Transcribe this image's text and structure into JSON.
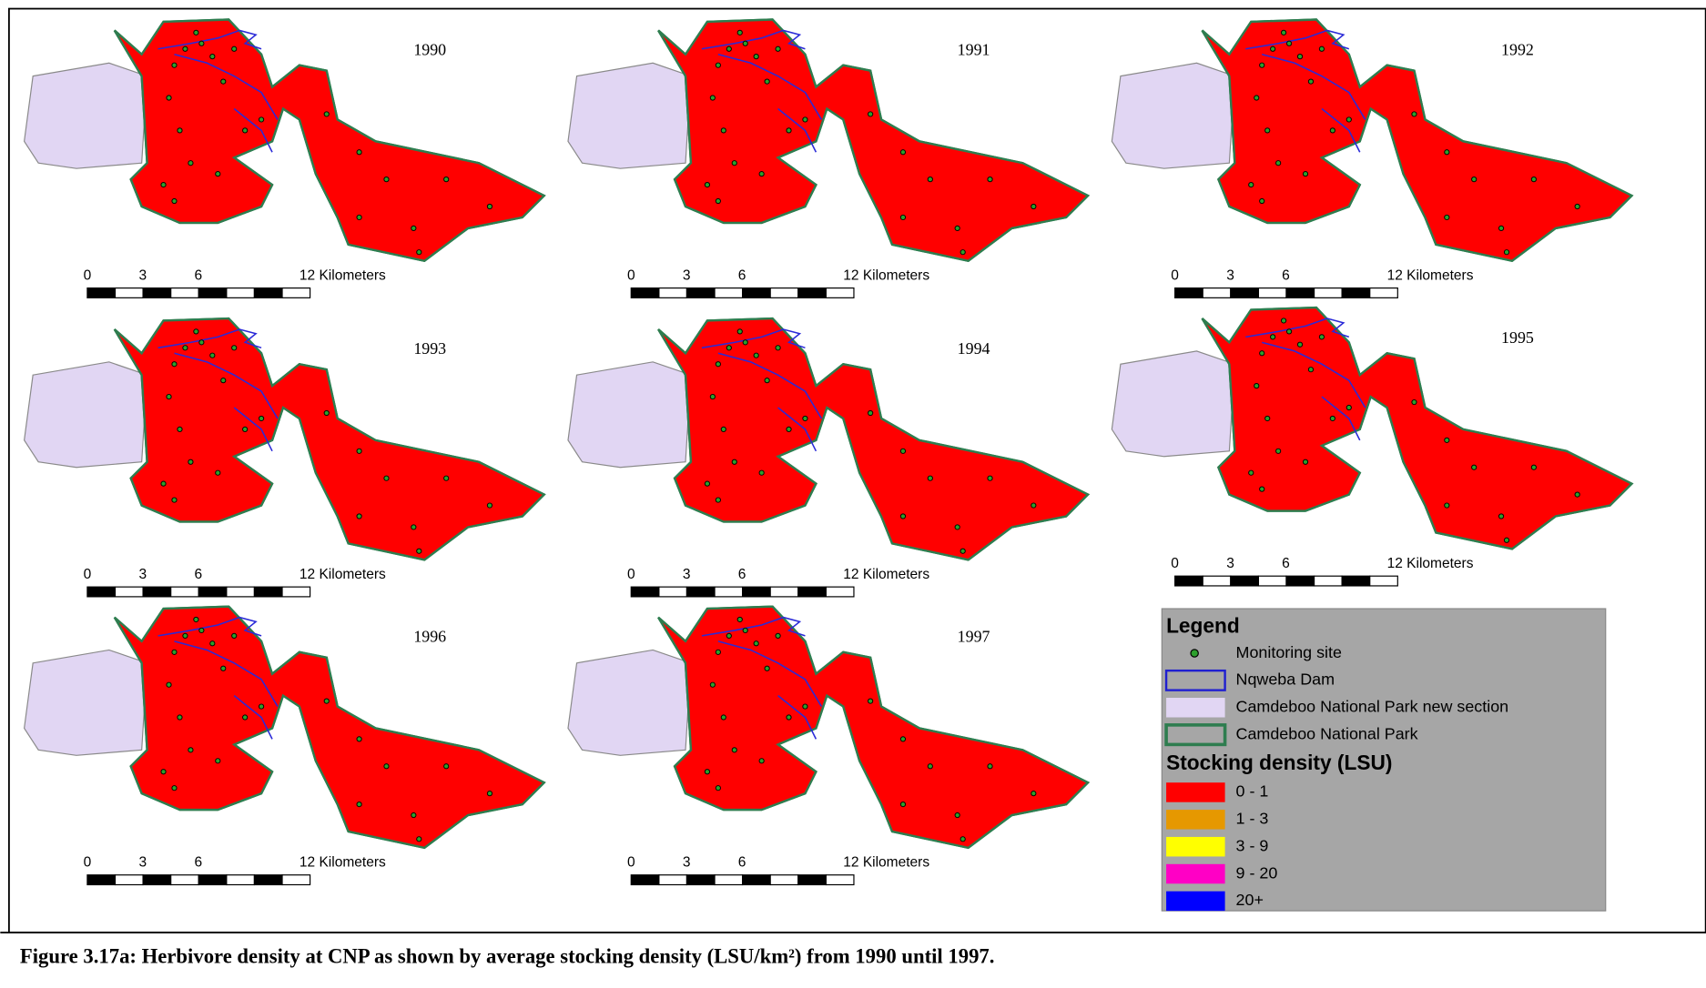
{
  "panels": [
    {
      "year": "1990",
      "scale_labels": [
        "0",
        "3",
        "6",
        "12 Kilometers"
      ]
    },
    {
      "year": "1991",
      "scale_labels": [
        "0",
        "3",
        "6",
        "12 Kilometers"
      ]
    },
    {
      "year": "1992",
      "scale_labels": [
        "0",
        "3",
        "6",
        "12 Kilometers"
      ]
    },
    {
      "year": "1993",
      "scale_labels": [
        "0",
        "3",
        "6",
        "12 Kilometers"
      ]
    },
    {
      "year": "1994",
      "scale_labels": [
        "0",
        "3",
        "6",
        "12 Kilometers"
      ]
    },
    {
      "year": "1995",
      "scale_labels": [
        "0",
        "3",
        "6",
        "12 Kilometers"
      ]
    },
    {
      "year": "1996",
      "scale_labels": [
        "0",
        "3",
        "6",
        "12 Kilometers"
      ]
    },
    {
      "year": "1997",
      "scale_labels": [
        "0",
        "3",
        "6",
        "12 Kilometers"
      ]
    }
  ],
  "legend": {
    "title": "Legend",
    "items": [
      "Monitoring site",
      "Nqweba Dam",
      "Camdeboo National Park new section",
      "Camdeboo National Park"
    ],
    "density_title": "Stocking density (LSU)",
    "classes": [
      {
        "label": "0 - 1",
        "color": "#ff0000"
      },
      {
        "label": "1 - 3",
        "color": "#e69800"
      },
      {
        "label": "3 - 9",
        "color": "#ffff00"
      },
      {
        "label": "9 - 20",
        "color": "#ff00c5"
      },
      {
        "label": "20+",
        "color": "#0000ff"
      }
    ]
  },
  "caption": "Figure 3.17a: Herbivore density at CNP as shown by average stocking density (LSU/km²) from 1990 until 1997."
}
